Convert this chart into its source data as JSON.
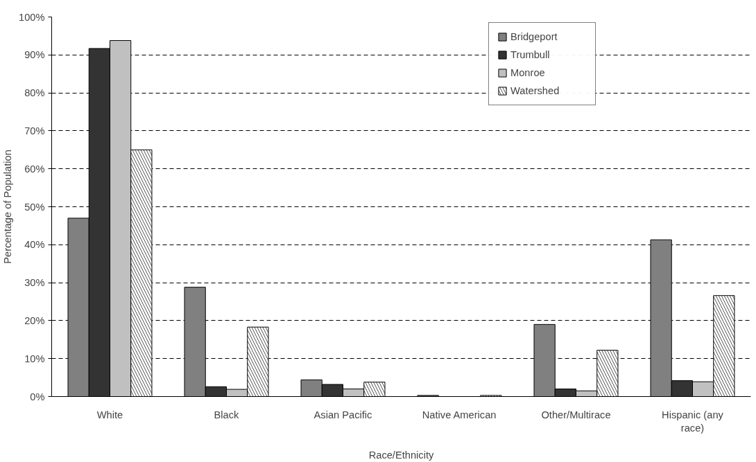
{
  "chart_data": {
    "type": "bar",
    "xlabel": "Race/Ethnicity",
    "ylabel": "Percentage of Population",
    "categories": [
      "White",
      "Black",
      "Asian Pacific",
      "Native American",
      "Other/Multirace",
      "Hispanic (any race)"
    ],
    "series": [
      {
        "name": "Bridgeport",
        "color": "#808080",
        "values": [
          47,
          28.8,
          4.4,
          0.3,
          19,
          41.3
        ]
      },
      {
        "name": "Trumbull",
        "color": "#333333",
        "values": [
          91.7,
          2.6,
          3.2,
          null,
          2.0,
          4.2
        ]
      },
      {
        "name": "Monroe",
        "color": "#c0c0c0",
        "values": [
          93.8,
          1.9,
          2.0,
          null,
          1.5,
          3.9
        ]
      },
      {
        "name": "Watershed",
        "color": "#ffffff",
        "values": [
          65,
          18.3,
          3.8,
          0.3,
          12.2,
          26.6
        ]
      }
    ],
    "ylim": [
      0,
      100
    ],
    "yticks": [
      {
        "value": 0,
        "label": "0%"
      },
      {
        "value": 10,
        "label": "10%"
      },
      {
        "value": 20,
        "label": "20%"
      },
      {
        "value": 30,
        "label": "30%"
      },
      {
        "value": 40,
        "label": "40%"
      },
      {
        "value": 50,
        "label": "50%"
      },
      {
        "value": 60,
        "label": "60%"
      },
      {
        "value": 70,
        "label": "70%"
      },
      {
        "value": 80,
        "label": "80%"
      },
      {
        "value": 90,
        "label": "90%"
      },
      {
        "value": 100,
        "label": "100%"
      }
    ],
    "grid": "y",
    "legend": "top right"
  }
}
